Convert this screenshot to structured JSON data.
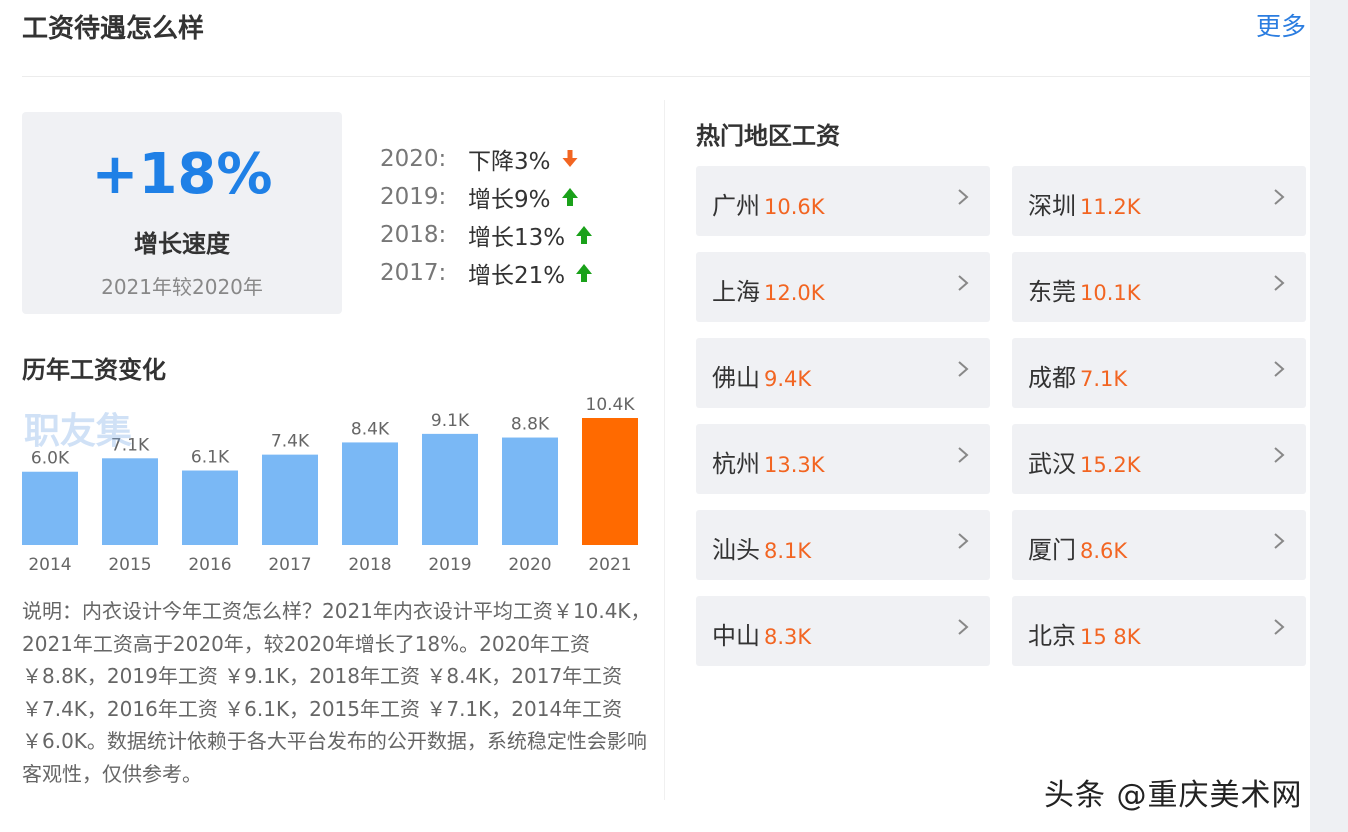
{
  "header": {
    "title": "工资待遇怎么样",
    "more_label": "更多"
  },
  "growth": {
    "value": "+18%",
    "label": "增长速度",
    "sub": "2021年较2020年"
  },
  "year_changes": [
    {
      "year": "2020:",
      "text": "下降3%",
      "dir": "down"
    },
    {
      "year": "2019:",
      "text": "增长9%",
      "dir": "up"
    },
    {
      "year": "2018:",
      "text": "增长13%",
      "dir": "up"
    },
    {
      "year": "2017:",
      "text": "增长21%",
      "dir": "up"
    }
  ],
  "history_title": "历年工资变化",
  "watermark_text": "职友集",
  "chart_data": {
    "type": "bar",
    "title": "历年工资变化",
    "categories": [
      "2014",
      "2015",
      "2016",
      "2017",
      "2018",
      "2019",
      "2020",
      "2021"
    ],
    "values": [
      6.0,
      7.1,
      6.1,
      7.4,
      8.4,
      9.1,
      8.8,
      10.4
    ],
    "labels": [
      "6.0K",
      "7.1K",
      "6.1K",
      "7.4K",
      "8.4K",
      "9.1K",
      "8.8K",
      "10.4K"
    ],
    "unit": "K",
    "highlight_index": 7,
    "colors": {
      "normal": "#7ab8f5",
      "highlight": "#ff6a00"
    },
    "ylim": [
      0,
      10.4
    ]
  },
  "description": "说明：内衣设计今年工资怎么样？2021年内衣设计平均工资￥10.4K，2021年工资高于2020年，较2020年增长了18%。2020年工资 ￥8.8K，2019年工资 ￥9.1K，2018年工资 ￥8.4K，2017年工资 ￥7.4K，2016年工资 ￥6.1K，2015年工资 ￥7.1K，2014年工资 ￥6.0K。数据统计依赖于各大平台发布的公开数据，系统稳定性会影响客观性，仅供参考。",
  "regions_title": "热门地区工资",
  "regions": [
    {
      "city": "广州",
      "salary": "10.6K"
    },
    {
      "city": "深圳",
      "salary": "11.2K"
    },
    {
      "city": "上海",
      "salary": "12.0K"
    },
    {
      "city": "东莞",
      "salary": "10.1K"
    },
    {
      "city": "佛山",
      "salary": "9.4K"
    },
    {
      "city": "成都",
      "salary": "7.1K"
    },
    {
      "city": "杭州",
      "salary": "13.3K"
    },
    {
      "city": "武汉",
      "salary": "15.2K"
    },
    {
      "city": "汕头",
      "salary": "8.1K"
    },
    {
      "city": "厦门",
      "salary": "8.6K"
    },
    {
      "city": "中山",
      "salary": "8.3K"
    },
    {
      "city": "北京",
      "salary": "15 8K"
    }
  ],
  "bottom_watermark": "头条 @重庆美术网",
  "colors": {
    "accent": "#1f80e6",
    "orange": "#f26522",
    "up": "#1aa11a",
    "down": "#f26522"
  }
}
